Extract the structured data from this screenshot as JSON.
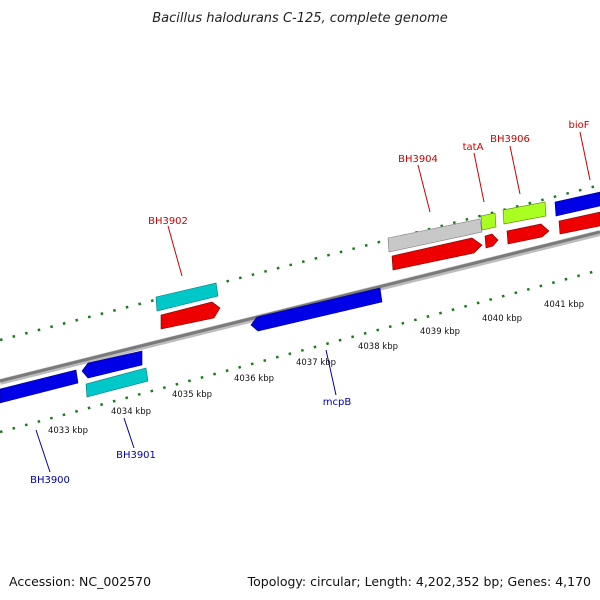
{
  "title": "Bacillus halodurans C-125, complete genome",
  "footer": {
    "accession": "Accession: NC_002570",
    "summary": "Topology: circular; Length: 4,202,352 bp; Genes: 4,170"
  },
  "colors": {
    "forward_label": "#cc0000",
    "reverse_label": "#0000aa",
    "backbone": "#888888",
    "tick": "#1a7a1a"
  },
  "position_ticks": [
    "4033 kbp",
    "4034 kbp",
    "4035 kbp",
    "4036 kbp",
    "4037 kbp",
    "4038 kbp",
    "4039 kbp",
    "4040 kbp",
    "4041 kbp"
  ],
  "genes": [
    {
      "name": "BH3900",
      "strand": "reverse",
      "color": "blue"
    },
    {
      "name": "BH3901",
      "strand": "reverse",
      "color": "blue"
    },
    {
      "name": "BH3902",
      "strand": "forward",
      "color": "red"
    },
    {
      "name": "mcpB",
      "strand": "reverse",
      "color": "blue"
    },
    {
      "name": "BH3904",
      "strand": "forward",
      "color": "red"
    },
    {
      "name": "tatA",
      "strand": "forward",
      "color": "red"
    },
    {
      "name": "BH3906",
      "strand": "forward",
      "color": "red"
    },
    {
      "name": "bioF",
      "strand": "forward",
      "color": "red"
    }
  ]
}
